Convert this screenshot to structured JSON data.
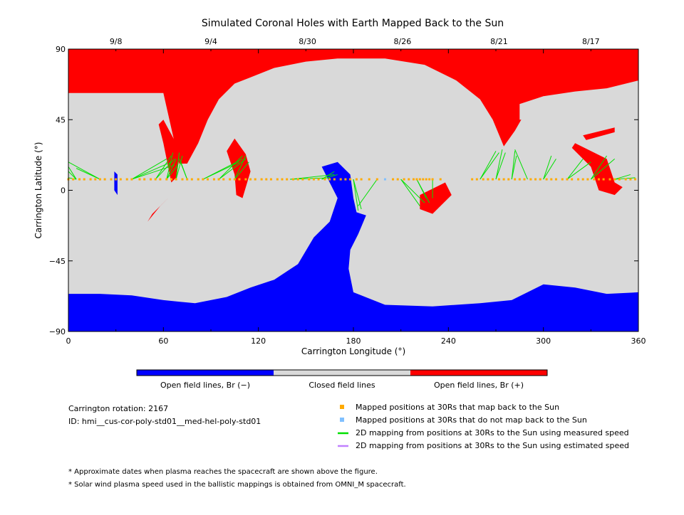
{
  "title": "Simulated Coronal Holes with Earth Mapped Back to the Sun",
  "chart_data": {
    "type": "heatmap",
    "title": "Simulated Coronal Holes with Earth Mapped Back to the Sun",
    "xlabel": "Carrington Longitude (°)",
    "ylabel": "Carrington Latitude (°)",
    "xlim": [
      0,
      360
    ],
    "ylim": [
      -90,
      90
    ],
    "x_ticks": [
      0,
      60,
      120,
      180,
      240,
      300,
      360
    ],
    "y_ticks": [
      -90,
      -45,
      0,
      45,
      90
    ],
    "top_axis_dates": [
      {
        "label": "9/8",
        "lon": 30
      },
      {
        "label": "9/4",
        "lon": 90
      },
      {
        "label": "8/30",
        "lon": 151
      },
      {
        "label": "8/26",
        "lon": 211
      },
      {
        "label": "8/21",
        "lon": 272
      },
      {
        "label": "8/17",
        "lon": 330
      }
    ],
    "colors": {
      "open_negative": "#0000ff",
      "closed": "#d9d9d9",
      "open_positive": "#ff0000",
      "mapped_back": "#ffaa00",
      "not_mapped": "#80c0ff",
      "measured_speed_line": "#00e000",
      "estimated_speed_line": "#c080ff"
    },
    "regions": {
      "north_red": [
        [
          0,
          62
        ],
        [
          60,
          62
        ],
        [
          66,
          35
        ],
        [
          70,
          17
        ],
        [
          75,
          17
        ],
        [
          82,
          30
        ],
        [
          88,
          45
        ],
        [
          95,
          58
        ],
        [
          105,
          68
        ],
        [
          115,
          72
        ],
        [
          130,
          78
        ],
        [
          150,
          82
        ],
        [
          170,
          84
        ],
        [
          200,
          84
        ],
        [
          225,
          80
        ],
        [
          245,
          70
        ],
        [
          260,
          58
        ],
        [
          268,
          45
        ],
        [
          275,
          28
        ],
        [
          282,
          38
        ],
        [
          290,
          52
        ],
        [
          300,
          60
        ],
        [
          320,
          63
        ],
        [
          340,
          65
        ],
        [
          360,
          70
        ],
        [
          360,
          90
        ],
        [
          0,
          90
        ]
      ],
      "polar_blue": [
        [
          0,
          -66
        ],
        [
          20,
          -66
        ],
        [
          40,
          -67
        ],
        [
          60,
          -70
        ],
        [
          80,
          -72
        ],
        [
          100,
          -68
        ],
        [
          115,
          -62
        ],
        [
          130,
          -57
        ],
        [
          145,
          -47
        ],
        [
          155,
          -30
        ],
        [
          165,
          -20
        ],
        [
          170,
          -5
        ],
        [
          165,
          5
        ],
        [
          160,
          15
        ],
        [
          170,
          18
        ],
        [
          178,
          10
        ],
        [
          180,
          -5
        ],
        [
          182,
          -14
        ],
        [
          188,
          -16
        ],
        [
          183,
          -28
        ],
        [
          178,
          -38
        ],
        [
          177,
          -50
        ],
        [
          180,
          -65
        ],
        [
          200,
          -73
        ],
        [
          230,
          -74
        ],
        [
          260,
          -72
        ],
        [
          280,
          -70
        ],
        [
          300,
          -60
        ],
        [
          320,
          -62
        ],
        [
          340,
          -66
        ],
        [
          360,
          -65
        ],
        [
          360,
          -90
        ],
        [
          0,
          -90
        ]
      ],
      "red_tongue_1": [
        [
          60,
          45
        ],
        [
          68,
          30
        ],
        [
          70,
          20
        ],
        [
          68,
          8
        ],
        [
          65,
          5
        ],
        [
          63,
          15
        ],
        [
          60,
          30
        ],
        [
          57,
          42
        ]
      ],
      "red_tongue_2": [
        [
          105,
          33
        ],
        [
          112,
          23
        ],
        [
          115,
          12
        ],
        [
          110,
          -5
        ],
        [
          106,
          -3
        ],
        [
          105,
          10
        ],
        [
          100,
          25
        ]
      ],
      "red_south_patch": [
        [
          222,
          -3
        ],
        [
          238,
          5
        ],
        [
          242,
          -3
        ],
        [
          230,
          -15
        ],
        [
          222,
          -12
        ]
      ],
      "red_strip": [
        [
          50,
          -20
        ],
        [
          58,
          -10
        ],
        [
          63,
          -5
        ],
        [
          60,
          -8
        ],
        [
          53,
          -15
        ]
      ],
      "red_right_patch": [
        [
          320,
          30
        ],
        [
          340,
          20
        ],
        [
          345,
          5
        ],
        [
          350,
          2
        ],
        [
          345,
          -3
        ],
        [
          335,
          0
        ],
        [
          330,
          15
        ],
        [
          318,
          27
        ]
      ],
      "red_small_patch": [
        [
          325,
          35
        ],
        [
          345,
          40
        ],
        [
          345,
          37
        ],
        [
          327,
          32
        ]
      ],
      "blue_small_patch": [
        [
          29,
          12
        ],
        [
          31,
          10
        ],
        [
          31,
          -3
        ],
        [
          29,
          0
        ]
      ],
      "closed_island_1": [
        [
          285,
          55
        ],
        [
          300,
          60
        ],
        [
          310,
          55
        ],
        [
          300,
          45
        ],
        [
          285,
          45
        ]
      ],
      "closed_island_2": [
        [
          315,
          50
        ],
        [
          330,
          60
        ],
        [
          345,
          55
        ],
        [
          335,
          40
        ],
        [
          320,
          40
        ]
      ]
    },
    "mapped_positions": {
      "latitude": 7,
      "mapped_back_lons": [
        0,
        3,
        7,
        10,
        14,
        17,
        20,
        23,
        27,
        30,
        33,
        37,
        40,
        45,
        48,
        52,
        55,
        58,
        62,
        65,
        68,
        72,
        75,
        78,
        82,
        85,
        88,
        92,
        95,
        98,
        102,
        105,
        108,
        112,
        115,
        118,
        122,
        125,
        128,
        132,
        135,
        138,
        142,
        145,
        148,
        152,
        155,
        158,
        162,
        165,
        168,
        172,
        175,
        178,
        182,
        185,
        190,
        195,
        205,
        208,
        212,
        215,
        218,
        220,
        222,
        224,
        226,
        228,
        230,
        235,
        255,
        258,
        262,
        265,
        268,
        272,
        275,
        278,
        282,
        285,
        288,
        292,
        295,
        298,
        302,
        305,
        308,
        312,
        315,
        318,
        322,
        325,
        328,
        332,
        335,
        338,
        342,
        345,
        348,
        352,
        355,
        358
      ],
      "not_mapped_lons": [
        200
      ]
    },
    "field_line_traces": [
      {
        "from_lon": 5,
        "to": [
          [
            0,
            15
          ],
          [
            0,
            12
          ],
          [
            0,
            8
          ]
        ]
      },
      {
        "from_lon": 20,
        "to": [
          [
            0,
            18
          ],
          [
            5,
            14
          ]
        ]
      },
      {
        "from_lon": 40,
        "to": [
          [
            62,
            20
          ],
          [
            65,
            18
          ],
          [
            67,
            16
          ]
        ]
      },
      {
        "from_lon": 55,
        "to": [
          [
            65,
            22
          ],
          [
            67,
            20
          ]
        ]
      },
      {
        "from_lon": 62,
        "to": [
          [
            66,
            24
          ],
          [
            68,
            20
          ],
          [
            69,
            16
          ]
        ]
      },
      {
        "from_lon": 68,
        "to": [
          [
            70,
            24
          ],
          [
            72,
            22
          ]
        ]
      },
      {
        "from_lon": 75,
        "to": [
          [
            70,
            20
          ],
          [
            71,
            18
          ]
        ]
      },
      {
        "from_lon": 85,
        "to": [
          [
            108,
            18
          ],
          [
            110,
            20
          ]
        ]
      },
      {
        "from_lon": 95,
        "to": [
          [
            110,
            22
          ],
          [
            112,
            20
          ]
        ]
      },
      {
        "from_lon": 105,
        "to": [
          [
            112,
            22
          ],
          [
            114,
            18
          ]
        ]
      },
      {
        "from_lon": 140,
        "to": [
          [
            165,
            8
          ],
          [
            168,
            10
          ]
        ]
      },
      {
        "from_lon": 160,
        "to": [
          [
            168,
            12
          ],
          [
            170,
            10
          ]
        ]
      },
      {
        "from_lon": 180,
        "to": [
          [
            183,
            -13
          ],
          [
            185,
            -12
          ]
        ]
      },
      {
        "from_lon": 195,
        "to": [
          [
            183,
            -10
          ]
        ]
      },
      {
        "from_lon": 210,
        "to": [
          [
            222,
            -10
          ],
          [
            225,
            -8
          ]
        ]
      },
      {
        "from_lon": 220,
        "to": [
          [
            226,
            -5
          ],
          [
            228,
            -8
          ]
        ]
      },
      {
        "from_lon": 230,
        "to": [
          [
            230,
            -5
          ]
        ]
      },
      {
        "from_lon": 260,
        "to": [
          [
            270,
            25
          ],
          [
            272,
            24
          ]
        ]
      },
      {
        "from_lon": 270,
        "to": [
          [
            274,
            26
          ],
          [
            276,
            24
          ]
        ]
      },
      {
        "from_lon": 280,
        "to": [
          [
            282,
            25
          ],
          [
            283,
            22
          ]
        ]
      },
      {
        "from_lon": 290,
        "to": [
          [
            282,
            26
          ]
        ]
      },
      {
        "from_lon": 300,
        "to": [
          [
            305,
            22
          ],
          [
            308,
            20
          ]
        ]
      },
      {
        "from_lon": 315,
        "to": [
          [
            325,
            20
          ],
          [
            330,
            18
          ]
        ]
      },
      {
        "from_lon": 330,
        "to": [
          [
            340,
            22
          ],
          [
            345,
            20
          ]
        ]
      },
      {
        "from_lon": 345,
        "to": [
          [
            355,
            10
          ],
          [
            358,
            8
          ]
        ]
      }
    ]
  },
  "colorbar": {
    "labels": [
      "Open field lines, Br (−)",
      "Closed field lines",
      "Open field lines, Br (+)"
    ]
  },
  "info": {
    "rotation": "Carrington rotation: 2167",
    "id": "ID: hmi__cus-cor-poly-std01__med-hel-poly-std01"
  },
  "legend": [
    {
      "label": "Mapped positions at 30Rs that map back to the Sun",
      "kind": "square",
      "color": "#ffaa00"
    },
    {
      "label": "Mapped positions at 30Rs that do not map back to the Sun",
      "kind": "square",
      "color": "#80c0ff"
    },
    {
      "label": "2D mapping from positions at 30Rs to the Sun using measured speed",
      "kind": "line",
      "color": "#00e000"
    },
    {
      "label": "2D mapping from positions at 30Rs to the Sun using estimated speed",
      "kind": "line",
      "color": "#c080ff"
    }
  ],
  "footnotes": [
    "* Approximate dates when plasma reaches the spacecraft are shown above the figure.",
    "* Solar wind plasma speed used in the ballistic mappings is obtained from OMNI_M spacecraft."
  ]
}
